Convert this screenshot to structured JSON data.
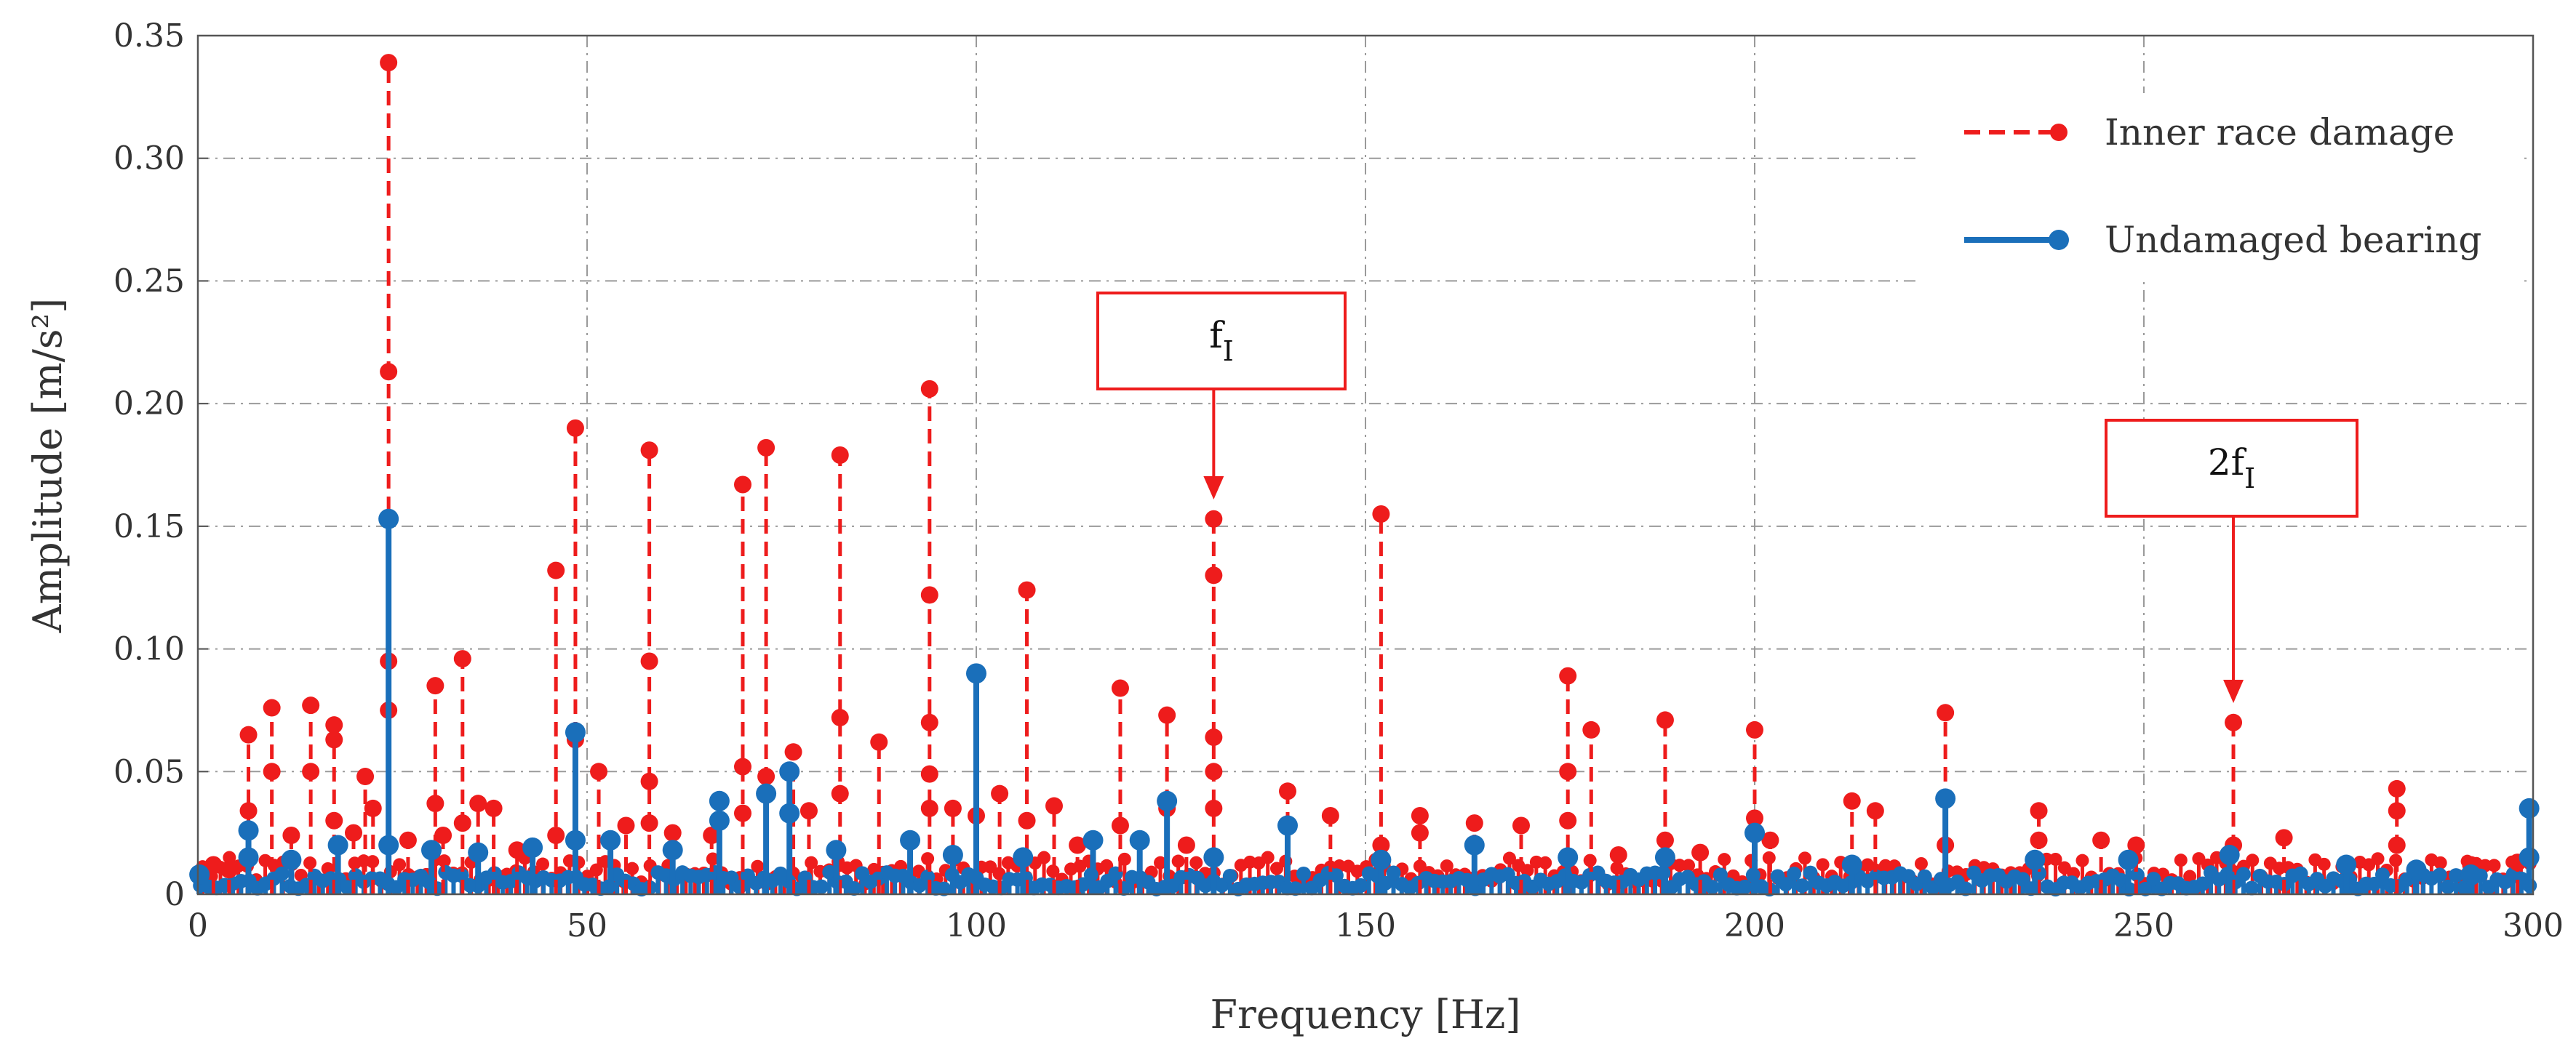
{
  "chart_data": {
    "type": "stem",
    "xlabel": "Frequency [Hz]",
    "ylabel": "Amplitude [m/s²]",
    "xlim": [
      0,
      300
    ],
    "ylim": [
      0,
      0.35
    ],
    "xticks": [
      "0",
      "50",
      "100",
      "150",
      "200",
      "250",
      "300"
    ],
    "yticks": [
      "0",
      "0.05",
      "0.10",
      "0.15",
      "0.20",
      "0.25",
      "0.30",
      "0.35"
    ],
    "grid": true,
    "legend_position": "top-right",
    "series": [
      {
        "name": "Inner race damage",
        "color": "#ee1c1c",
        "linestyle": "dashed",
        "points": [
          [
            2,
            0.012
          ],
          [
            4,
            0.01
          ],
          [
            6.5,
            0.065
          ],
          [
            6.5,
            0.034
          ],
          [
            9.5,
            0.076
          ],
          [
            9.5,
            0.05
          ],
          [
            12,
            0.024
          ],
          [
            14.5,
            0.077
          ],
          [
            14.5,
            0.05
          ],
          [
            17.5,
            0.069
          ],
          [
            17.5,
            0.063
          ],
          [
            17.5,
            0.03
          ],
          [
            20,
            0.025
          ],
          [
            21.5,
            0.048
          ],
          [
            22.5,
            0.035
          ],
          [
            24.5,
            0.339
          ],
          [
            24.5,
            0.213
          ],
          [
            24.5,
            0.095
          ],
          [
            24.5,
            0.075
          ],
          [
            27,
            0.022
          ],
          [
            30.5,
            0.085
          ],
          [
            30.5,
            0.037
          ],
          [
            31.5,
            0.024
          ],
          [
            34,
            0.096
          ],
          [
            34,
            0.029
          ],
          [
            36,
            0.037
          ],
          [
            38,
            0.035
          ],
          [
            41,
            0.018
          ],
          [
            46,
            0.132
          ],
          [
            46,
            0.024
          ],
          [
            48.5,
            0.19
          ],
          [
            48.5,
            0.063
          ],
          [
            51.5,
            0.05
          ],
          [
            55,
            0.028
          ],
          [
            58,
            0.181
          ],
          [
            58,
            0.095
          ],
          [
            58,
            0.046
          ],
          [
            58,
            0.029
          ],
          [
            61,
            0.025
          ],
          [
            66,
            0.024
          ],
          [
            70,
            0.167
          ],
          [
            70,
            0.052
          ],
          [
            70,
            0.033
          ],
          [
            73,
            0.182
          ],
          [
            73,
            0.048
          ],
          [
            76.5,
            0.058
          ],
          [
            78.5,
            0.034
          ],
          [
            82.5,
            0.179
          ],
          [
            82.5,
            0.072
          ],
          [
            82.5,
            0.041
          ],
          [
            87.5,
            0.062
          ],
          [
            94,
            0.206
          ],
          [
            94,
            0.122
          ],
          [
            94,
            0.07
          ],
          [
            94,
            0.049
          ],
          [
            94,
            0.035
          ],
          [
            97,
            0.035
          ],
          [
            100,
            0.032
          ],
          [
            103,
            0.041
          ],
          [
            106.5,
            0.124
          ],
          [
            106.5,
            0.03
          ],
          [
            110,
            0.036
          ],
          [
            113,
            0.02
          ],
          [
            118.5,
            0.084
          ],
          [
            118.5,
            0.028
          ],
          [
            124.5,
            0.073
          ],
          [
            124.5,
            0.035
          ],
          [
            127,
            0.02
          ],
          [
            130.5,
            0.153
          ],
          [
            130.5,
            0.13
          ],
          [
            130.5,
            0.064
          ],
          [
            130.5,
            0.05
          ],
          [
            130.5,
            0.035
          ],
          [
            140,
            0.042
          ],
          [
            145.5,
            0.032
          ],
          [
            152,
            0.155
          ],
          [
            152,
            0.02
          ],
          [
            157,
            0.032
          ],
          [
            157,
            0.025
          ],
          [
            164,
            0.029
          ],
          [
            170,
            0.028
          ],
          [
            176,
            0.089
          ],
          [
            176,
            0.05
          ],
          [
            176,
            0.03
          ],
          [
            179,
            0.067
          ],
          [
            182.5,
            0.016
          ],
          [
            188.5,
            0.071
          ],
          [
            188.5,
            0.022
          ],
          [
            193,
            0.017
          ],
          [
            200,
            0.067
          ],
          [
            200,
            0.031
          ],
          [
            202,
            0.022
          ],
          [
            212.5,
            0.038
          ],
          [
            215.5,
            0.034
          ],
          [
            224.5,
            0.074
          ],
          [
            224.5,
            0.02
          ],
          [
            236.5,
            0.034
          ],
          [
            236.5,
            0.022
          ],
          [
            244.5,
            0.022
          ],
          [
            249,
            0.02
          ],
          [
            261.5,
            0.07
          ],
          [
            261.5,
            0.02
          ],
          [
            268,
            0.023
          ],
          [
            282.5,
            0.043
          ],
          [
            282.5,
            0.034
          ],
          [
            282.5,
            0.02
          ],
          [
            292,
            0.012
          ],
          [
            298,
            0.013
          ]
        ]
      },
      {
        "name": "Undamaged bearing",
        "color": "#1a6fba",
        "linestyle": "solid",
        "points": [
          [
            0.2,
            0.008
          ],
          [
            6.5,
            0.026
          ],
          [
            6.5,
            0.015
          ],
          [
            12,
            0.014
          ],
          [
            18,
            0.02
          ],
          [
            24.5,
            0.153
          ],
          [
            24.5,
            0.02
          ],
          [
            30,
            0.018
          ],
          [
            36,
            0.017
          ],
          [
            43,
            0.019
          ],
          [
            48.5,
            0.066
          ],
          [
            48.5,
            0.022
          ],
          [
            53,
            0.022
          ],
          [
            61,
            0.018
          ],
          [
            67,
            0.038
          ],
          [
            67,
            0.03
          ],
          [
            73,
            0.041
          ],
          [
            76,
            0.05
          ],
          [
            76,
            0.033
          ],
          [
            82,
            0.018
          ],
          [
            91.5,
            0.022
          ],
          [
            97,
            0.016
          ],
          [
            100,
            0.09
          ],
          [
            106,
            0.015
          ],
          [
            115,
            0.022
          ],
          [
            121,
            0.022
          ],
          [
            124.5,
            0.038
          ],
          [
            130.5,
            0.015
          ],
          [
            140,
            0.028
          ],
          [
            152,
            0.014
          ],
          [
            164,
            0.02
          ],
          [
            176,
            0.015
          ],
          [
            188.5,
            0.015
          ],
          [
            200,
            0.025
          ],
          [
            212.5,
            0.012
          ],
          [
            224.5,
            0.039
          ],
          [
            236,
            0.014
          ],
          [
            248,
            0.014
          ],
          [
            261,
            0.016
          ],
          [
            276,
            0.012
          ],
          [
            285,
            0.01
          ],
          [
            292,
            0.008
          ],
          [
            299.5,
            0.035
          ],
          [
            299.5,
            0.015
          ]
        ]
      }
    ],
    "annotations": [
      {
        "base": "f",
        "sub": "I",
        "x": 130.5,
        "y": 0.155
      },
      {
        "base": "2f",
        "sub": "I",
        "x": 261.5,
        "y": 0.072
      }
    ]
  }
}
